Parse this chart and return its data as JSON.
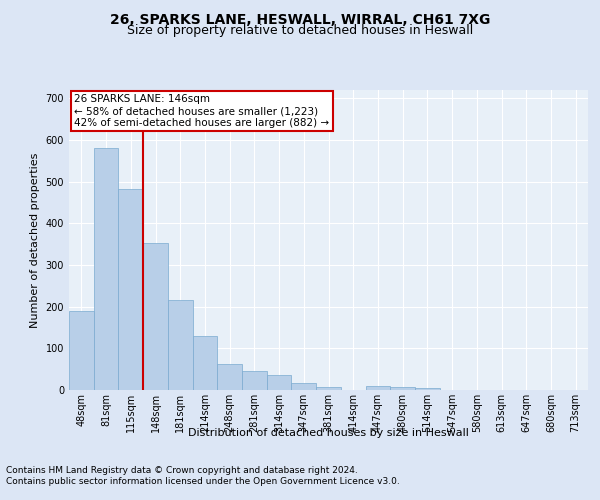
{
  "title": "26, SPARKS LANE, HESWALL, WIRRAL, CH61 7XG",
  "subtitle": "Size of property relative to detached houses in Heswall",
  "xlabel": "Distribution of detached houses by size in Heswall",
  "ylabel": "Number of detached properties",
  "categories": [
    "48sqm",
    "81sqm",
    "115sqm",
    "148sqm",
    "181sqm",
    "214sqm",
    "248sqm",
    "281sqm",
    "314sqm",
    "347sqm",
    "381sqm",
    "414sqm",
    "447sqm",
    "480sqm",
    "514sqm",
    "547sqm",
    "580sqm",
    "613sqm",
    "647sqm",
    "680sqm",
    "713sqm"
  ],
  "values": [
    190,
    580,
    483,
    352,
    215,
    130,
    62,
    46,
    37,
    16,
    8,
    0,
    9,
    8,
    4,
    0,
    0,
    0,
    0,
    0,
    0
  ],
  "bar_color": "#b8cfe8",
  "bar_edge_color": "#7aaad0",
  "vline_color": "#cc0000",
  "annotation_text": "26 SPARKS LANE: 146sqm\n← 58% of detached houses are smaller (1,223)\n42% of semi-detached houses are larger (882) →",
  "annotation_box_color": "#ffffff",
  "annotation_box_edge_color": "#cc0000",
  "ylim": [
    0,
    720
  ],
  "yticks": [
    0,
    100,
    200,
    300,
    400,
    500,
    600,
    700
  ],
  "bg_color": "#dce6f5",
  "plot_bg_color": "#e8f0f8",
  "grid_color": "#ffffff",
  "footer_line1": "Contains HM Land Registry data © Crown copyright and database right 2024.",
  "footer_line2": "Contains public sector information licensed under the Open Government Licence v3.0.",
  "title_fontsize": 10,
  "subtitle_fontsize": 9,
  "ylabel_fontsize": 8,
  "xlabel_fontsize": 8,
  "tick_fontsize": 7,
  "annotation_fontsize": 7.5,
  "footer_fontsize": 6.5
}
